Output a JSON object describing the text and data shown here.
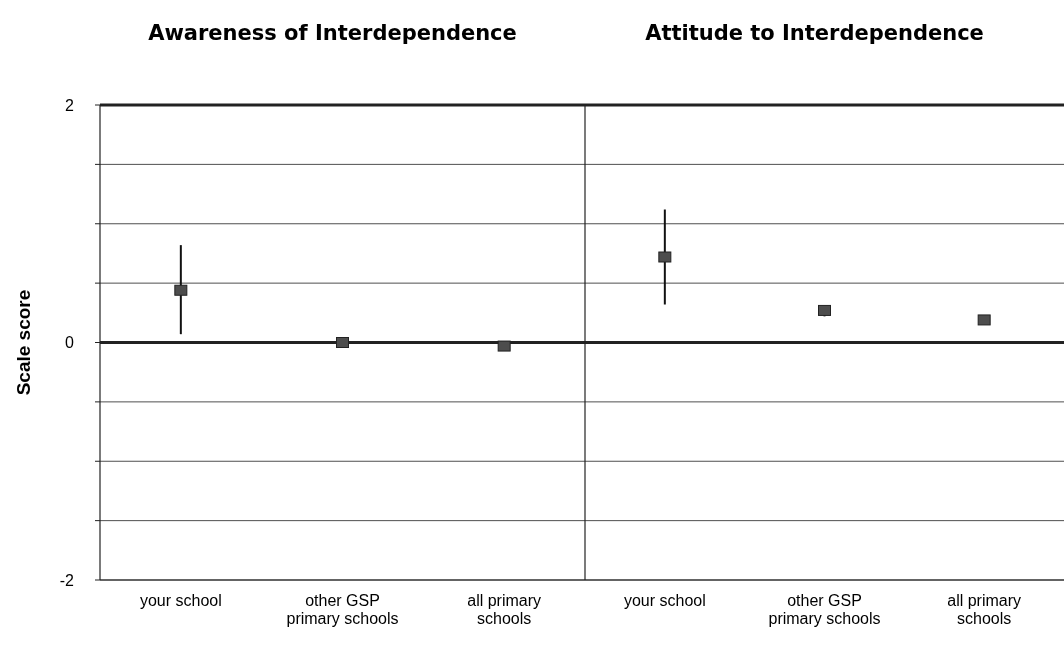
{
  "chart_data": [
    {
      "type": "scatter",
      "title": "Awareness of Interdependence",
      "ylabel": "Scale score",
      "categories": [
        "your school",
        "other GSP primary schools",
        "all primary schools"
      ],
      "values": [
        0.44,
        0.0,
        -0.03
      ],
      "errors": [
        [
          0.07,
          0.82
        ],
        [
          -0.04,
          0.04
        ],
        null
      ],
      "color": "#4d4d4d",
      "marker": "square",
      "ylim": [
        -2,
        2
      ],
      "yticks": [
        -2,
        {
          "value": -1.5,
          "label": null
        },
        {
          "value": -1,
          "label": null
        },
        {
          "value": -0.5,
          "label": null
        },
        0,
        {
          "value": 0.5,
          "label": null
        },
        {
          "value": 1,
          "label": null
        },
        {
          "value": 1.5,
          "label": null
        },
        2
      ],
      "grid": "y"
    },
    {
      "type": "scatter",
      "title": "Attitude to Interdependence",
      "categories": [
        "your school",
        "other GSP primary schools",
        "all primary schools"
      ],
      "values": [
        0.72,
        0.27,
        0.19
      ],
      "errors": [
        [
          0.32,
          1.12
        ],
        [
          0.22,
          0.3
        ],
        null
      ],
      "color": "#4d4d4d",
      "marker": "square",
      "ylim": [
        -2,
        2
      ],
      "yticks": [
        -2,
        {
          "value": -1.5,
          "label": null
        },
        {
          "value": -1,
          "label": null
        },
        {
          "value": -0.5,
          "label": null
        },
        0,
        {
          "value": 0.5,
          "label": null
        },
        {
          "value": 1,
          "label": null
        },
        {
          "value": 1.5,
          "label": null
        },
        2
      ],
      "grid": "y",
      "tick_labels": "x"
    }
  ]
}
